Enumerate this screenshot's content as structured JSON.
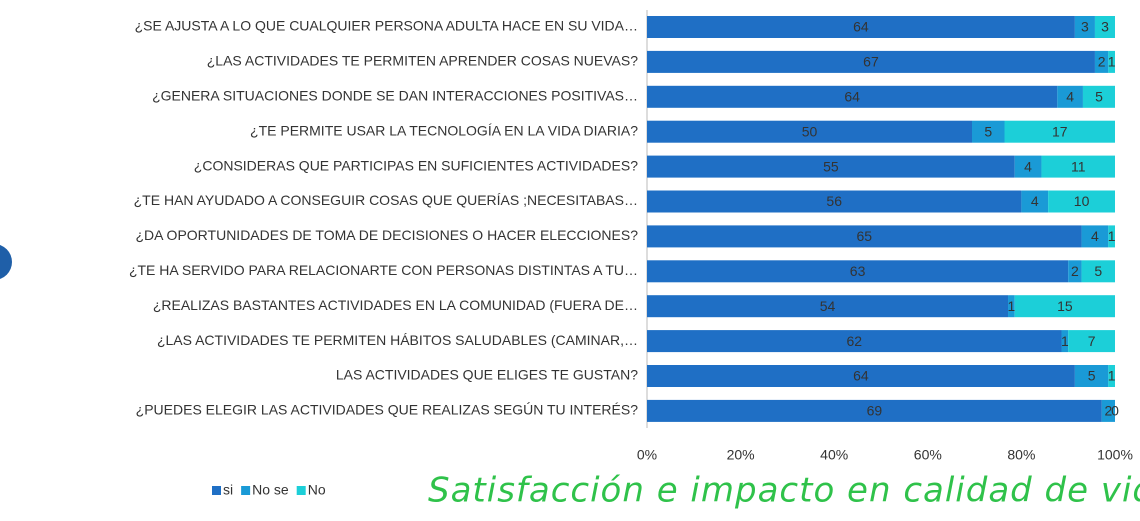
{
  "chart_data": {
    "type": "stacked100_barh",
    "title": "Satisfacción e impacto en calidad de vida",
    "categories": [
      "¿SE AJUSTA A LO QUE CUALQUIER PERSONA ADULTA HACE EN SU VIDA…",
      "¿LAS ACTIVIDADES TE PERMITEN APRENDER COSAS NUEVAS?",
      "¿GENERA SITUACIONES DONDE SE DAN INTERACCIONES POSITIVAS…",
      "¿TE PERMITE USAR LA TECNOLOGÍA EN LA VIDA DIARIA?",
      "¿CONSIDERAS QUE PARTICIPAS EN SUFICIENTES ACTIVIDADES?",
      "¿TE HAN AYUDADO A CONSEGUIR COSAS QUE QUERÍAS ;NECESITABAS…",
      "¿DA OPORTUNIDADES DE TOMA DE DECISIONES O HACER ELECCIONES?",
      "¿TE HA SERVIDO PARA RELACIONARTE CON PERSONAS DISTINTAS A TU…",
      "¿REALIZAS BASTANTES ACTIVIDADES EN LA COMUNIDAD (FUERA DE…",
      "¿LAS ACTIVIDADES TE PERMITEN HÁBITOS SALUDABLES (CAMINAR,…",
      "LAS ACTIVIDADES QUE ELIGES TE GUSTAN?",
      "¿PUEDES ELEGIR LAS ACTIVIDADES QUE REALIZAS SEGÚN TU INTERÉS?"
    ],
    "series": [
      {
        "name": "si",
        "color": "#1f6fc5",
        "values": [
          64,
          67,
          64,
          50,
          55,
          56,
          65,
          63,
          54,
          62,
          64,
          69
        ]
      },
      {
        "name": "No se",
        "color": "#1a9ad6",
        "values": [
          3,
          2,
          4,
          5,
          4,
          4,
          4,
          2,
          1,
          1,
          5,
          2
        ]
      },
      {
        "name": "No",
        "color": "#1ccfd8",
        "values": [
          3,
          1,
          5,
          17,
          11,
          10,
          1,
          5,
          15,
          7,
          1,
          0
        ]
      }
    ],
    "xlim": [
      0,
      100
    ],
    "xticks": [
      {
        "value": 0,
        "label": "0%"
      },
      {
        "value": 20,
        "label": "20%"
      },
      {
        "value": 40,
        "label": "40%"
      },
      {
        "value": 60,
        "label": "60%"
      },
      {
        "value": 80,
        "label": "80%"
      },
      {
        "value": 100,
        "label": "100%"
      }
    ],
    "legend": "bottom-left"
  }
}
